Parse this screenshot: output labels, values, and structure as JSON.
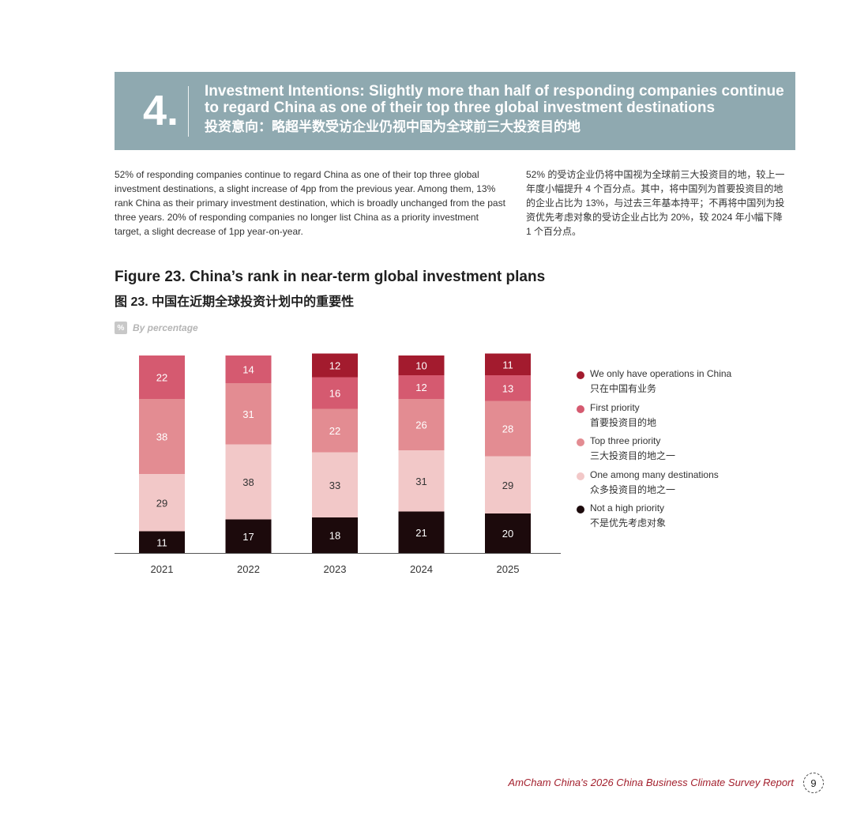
{
  "banner": {
    "number": "4.",
    "title_en": "Investment Intentions: Slightly more than half of responding companies continue to regard China as one of their top three global investment destinations",
    "title_cn": "投资意向：略超半数受访企业仍视中国为全球前三大投资目的地"
  },
  "body": {
    "paragraph_en": "52% of responding companies continue to regard China as one of their top three global investment destinations, a slight increase of 4pp from the previous year. Among them, 13% rank China as their primary investment destination, which is broadly unchanged from the past three years. 20% of responding companies no longer list China as a priority investment target, a slight decrease of 1pp year-on-year.",
    "paragraph_cn": "52% 的受访企业仍将中国视为全球前三大投资目的地，较上一年度小幅提升 4 个百分点。其中，将中国列为首要投资目的地的企业占比为 13%，与过去三年基本持平；不再将中国列为投资优先考虑对象的受访企业占比为 20%，较 2024 年小幅下降 1 个百分点。"
  },
  "figure": {
    "title_en": "Figure 23. China’s rank in near-term global investment plans",
    "title_cn": "图 23. 中国在近期全球投资计划中的重要性",
    "unit_badge": "%",
    "unit_label": "By percentage"
  },
  "chart_data": {
    "type": "bar",
    "stacked": true,
    "categories": [
      "2021",
      "2022",
      "2023",
      "2024",
      "2025"
    ],
    "series": [
      {
        "name": "Not a high priority",
        "name_cn": "不是优先考虑对象",
        "color": "#1c0a0c",
        "values": [
          11,
          17,
          18,
          21,
          20
        ]
      },
      {
        "name": "One among many destinations",
        "name_cn": "众多投资目的地之一",
        "color": "#f2c8c8",
        "values": [
          29,
          38,
          33,
          31,
          29
        ]
      },
      {
        "name": "Top three priority",
        "name_cn": "三大投资目的地之一",
        "color": "#e38c92",
        "values": [
          38,
          31,
          22,
          26,
          28
        ]
      },
      {
        "name": "First priority",
        "name_cn": "首要投资目的地",
        "color": "#d55a70",
        "values": [
          22,
          14,
          16,
          12,
          13
        ]
      },
      {
        "name": "We only have operations in China",
        "name_cn": "只在中国有业务",
        "color": "#a31b2e",
        "values": [
          null,
          null,
          12,
          10,
          11
        ]
      }
    ],
    "ylim": [
      0,
      100
    ],
    "grid": false,
    "legend": "right"
  },
  "footer": {
    "report": "AmCham China's 2026 China Business Climate Survey Report",
    "page": "9"
  }
}
